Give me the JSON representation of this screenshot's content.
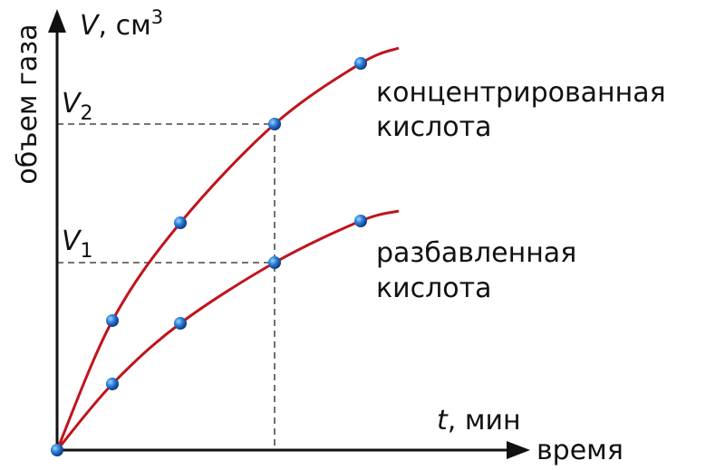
{
  "axes": {
    "y_label": "объем газа",
    "y_quantity": {
      "symbol": "V",
      "unit": ", см",
      "power": "3"
    },
    "x_quantity": {
      "symbol": "t",
      "unit": ", мин"
    },
    "x_label": "время"
  },
  "levels": [
    {
      "symbol": "V",
      "sub": "2"
    },
    {
      "symbol": "V",
      "sub": "1"
    }
  ],
  "curves": [
    {
      "label_lines": [
        "концентрированная",
        "кислота"
      ]
    },
    {
      "label_lines": [
        "разбавленная",
        "кислота"
      ]
    }
  ]
}
